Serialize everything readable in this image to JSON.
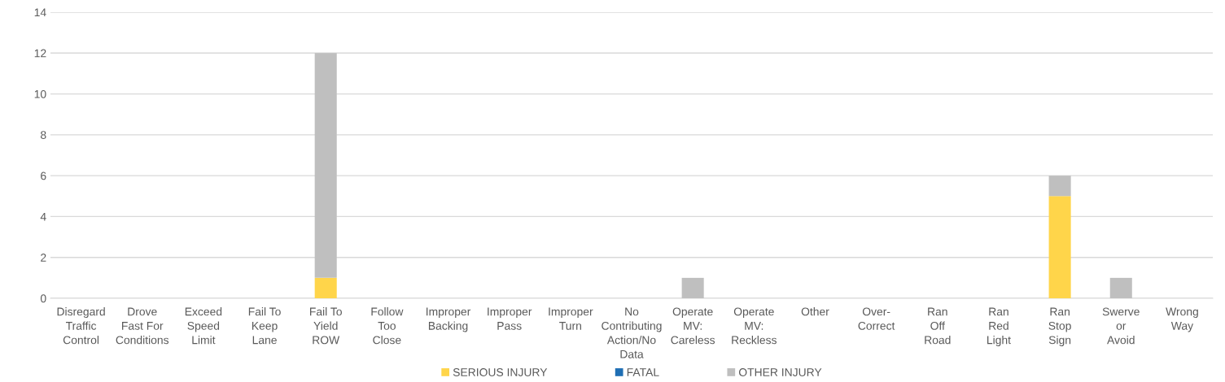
{
  "chart_data": {
    "type": "bar",
    "stacked": true,
    "categories": [
      "Disregard\nTraffic\nControl",
      "Drove\nFast For\nConditions",
      "Exceed\nSpeed\nLimit",
      "Fail To\nKeep\nLane",
      "Fail To\nYield\nROW",
      "Follow\nToo\nClose",
      "Improper\nBacking",
      "Improper\nPass",
      "Improper\nTurn",
      "No\nContributing\nAction/No\nData",
      "Operate\nMV:\nCareless",
      "Operate\nMV:\nReckless",
      "Other",
      "Over-\nCorrect",
      "Ran\nOff\nRoad",
      "Ran\nRed\nLight",
      "Ran\nStop\nSign",
      "Swerve\nor\nAvoid",
      "Wrong\nWay"
    ],
    "series": [
      {
        "name": "SERIOUS INJURY",
        "color": "#ffd54a",
        "values": [
          0,
          0,
          0,
          0,
          1,
          0,
          0,
          0,
          0,
          0,
          0,
          0,
          0,
          0,
          0,
          0,
          5,
          0,
          0
        ]
      },
      {
        "name": "FATAL",
        "color": "#1f6fb4",
        "values": [
          0,
          0,
          0,
          0,
          0,
          0,
          0,
          0,
          0,
          0,
          0,
          0,
          0,
          0,
          0,
          0,
          0,
          0,
          0
        ]
      },
      {
        "name": "OTHER INJURY",
        "color": "#bfbfbf",
        "values": [
          0,
          0,
          0,
          0,
          11,
          0,
          0,
          0,
          0,
          0,
          1,
          0,
          0,
          0,
          0,
          0,
          1,
          1,
          0
        ]
      }
    ],
    "ylim": [
      0,
      14
    ],
    "yticks": [
      0,
      2,
      4,
      6,
      8,
      10,
      12,
      14
    ],
    "grid": "y",
    "legend": "bottom"
  }
}
